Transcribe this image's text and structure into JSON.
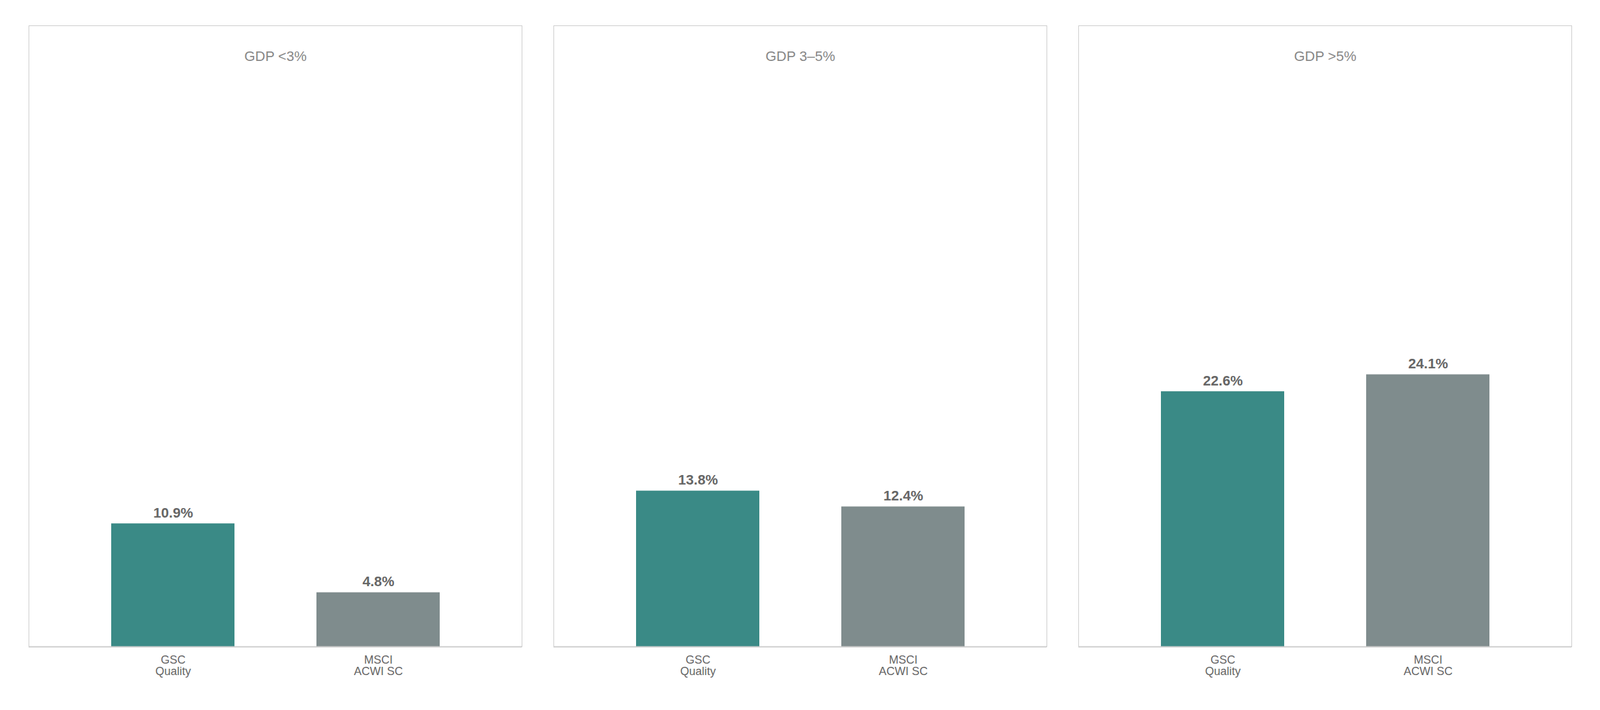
{
  "chart_data": [
    {
      "type": "bar",
      "title": "GDP <3%",
      "categories": [
        "GSC\nQuality",
        "MSCI\nACWI SC"
      ],
      "values": [
        10.9,
        4.8
      ],
      "value_labels": [
        "10.9%",
        "4.8%"
      ],
      "colors": [
        "#3a8a86",
        "#7f8c8d"
      ],
      "ylim": [
        0,
        55
      ],
      "data_labels": true,
      "tick_labels": "x",
      "grid": false
    },
    {
      "type": "bar",
      "title": "GDP 3–5%",
      "categories": [
        "GSC\nQuality",
        "MSCI\nACWI SC"
      ],
      "values": [
        13.8,
        12.4
      ],
      "value_labels": [
        "13.8%",
        "12.4%"
      ],
      "colors": [
        "#3a8a86",
        "#7f8c8d"
      ],
      "ylim": [
        0,
        55
      ],
      "data_labels": true,
      "tick_labels": "x",
      "grid": false
    },
    {
      "type": "bar",
      "title": "GDP >5%",
      "categories": [
        "GSC\nQuality",
        "MSCI\nACWI SC"
      ],
      "values": [
        22.6,
        24.1
      ],
      "value_labels": [
        "22.6%",
        "24.1%"
      ],
      "colors": [
        "#3a8a86",
        "#7f8c8d"
      ],
      "ylim": [
        0,
        55
      ],
      "data_labels": true,
      "tick_labels": "x",
      "grid": false
    }
  ]
}
